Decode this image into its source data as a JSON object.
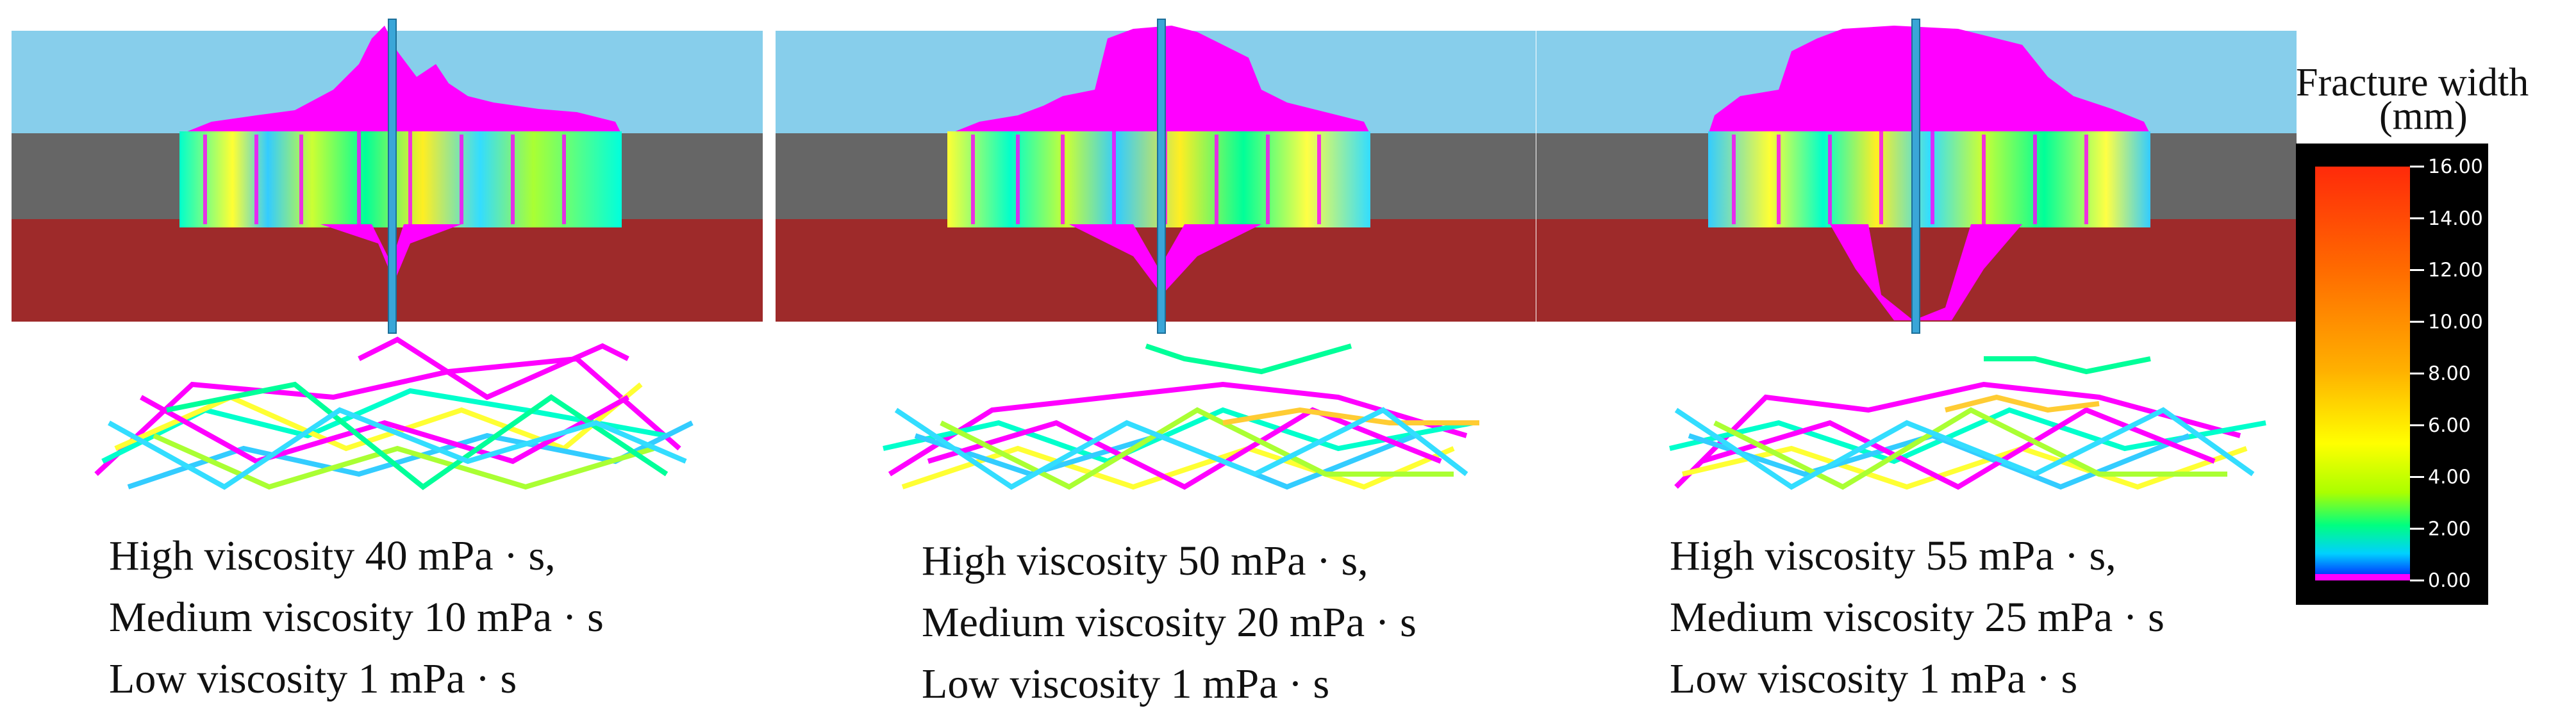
{
  "panels": [
    {
      "id": "case-1",
      "caption_lines": [
        "High viscosity 40 mPa · s,",
        "Medium viscosity 10 mPa · s",
        "Low viscosity 1 mPa · s"
      ]
    },
    {
      "id": "case-2",
      "caption_lines": [
        "High viscosity 50 mPa · s,",
        "Medium viscosity 20 mPa · s",
        "Low viscosity 1 mPa · s"
      ]
    },
    {
      "id": "case-3",
      "caption_lines": [
        "High viscosity 55 mPa · s,",
        "Medium viscosity 25 mPa · s",
        "Low viscosity 1 mPa · s"
      ]
    }
  ],
  "colors": {
    "upper_layer": "#87CEEB",
    "middle_layer": "#666666",
    "lower_layer": "#9E2A2A",
    "wellbore": "#3AA6D8",
    "magenta": "#FF00FF"
  },
  "legend": {
    "title_line1": "Fracture  width",
    "title_line2": "(mm)",
    "ticks": [
      "16.00",
      "14.00",
      "12.00",
      "10.00",
      "8.00",
      "6.00",
      "4.00",
      "2.00",
      "0.00"
    ]
  }
}
